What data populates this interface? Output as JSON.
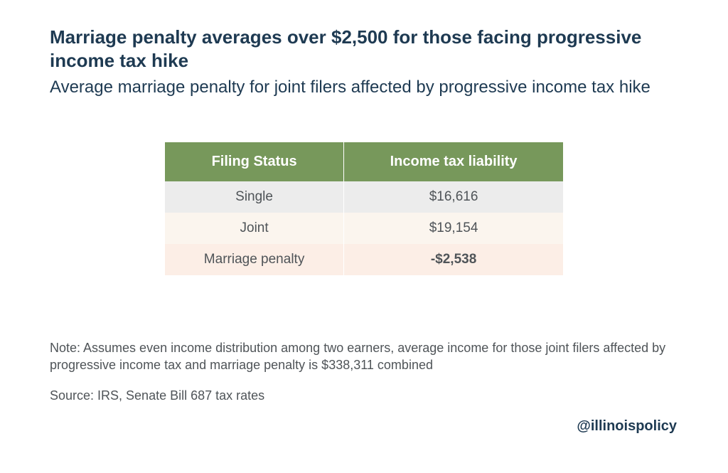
{
  "title": "Marriage penalty averages over $2,500 for those facing progressive income tax hike",
  "subtitle": "Average marriage penalty for joint filers affected by progressive income tax hike",
  "table": {
    "columns": [
      "Filing Status",
      "Income tax liability"
    ],
    "rows": [
      {
        "label": "Single",
        "value": "$16,616",
        "row_bg": "#ececec",
        "value_color": "#4f5458",
        "value_bold": false
      },
      {
        "label": "Joint",
        "value": "$19,154",
        "row_bg": "#fbf5ee",
        "value_color": "#4f5458",
        "value_bold": false
      },
      {
        "label": "Marriage penalty",
        "value": "-$2,538",
        "row_bg": "#fceee6",
        "value_color": "#d85c3c",
        "value_bold": true
      }
    ],
    "header_bg": "#77985b",
    "header_text_color": "#ffffff"
  },
  "note": "Note: Assumes even income distribution among two earners, average income for those joint filers affected by progressive income tax and marriage penalty is $338,311 combined",
  "source": "Source: IRS, Senate Bill 687 tax rates",
  "handle": "@illinoispolicy",
  "colors": {
    "title_color": "#1e3a52",
    "body_text": "#4f5458",
    "background": "#ffffff"
  },
  "typography": {
    "title_fontsize": 26,
    "subtitle_fontsize": 24,
    "table_header_fontsize": 20,
    "table_cell_fontsize": 19,
    "note_fontsize": 18
  }
}
